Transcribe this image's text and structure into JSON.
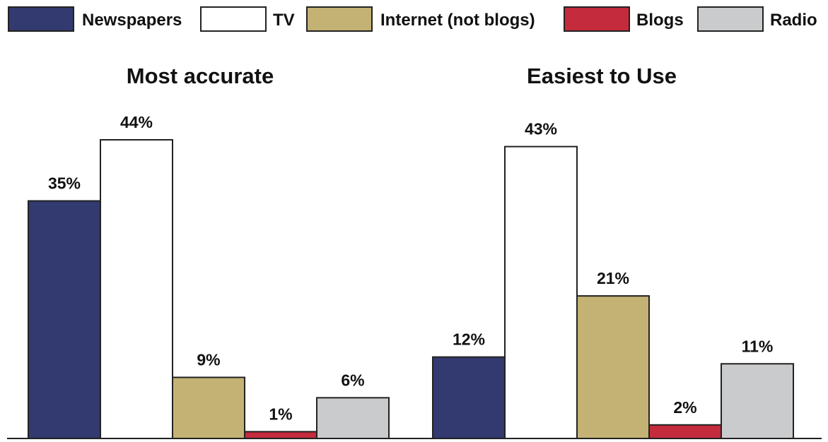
{
  "chart_data": {
    "type": "bar",
    "legend_position": "top",
    "grid": false,
    "series_styles": [
      {
        "name": "Newspapers",
        "fill": "#323a70",
        "stroke": "#222222"
      },
      {
        "name": "TV",
        "fill": "#ffffff",
        "stroke": "#222222"
      },
      {
        "name": "Internet (not blogs)",
        "fill": "#c4b274",
        "stroke": "#222222"
      },
      {
        "name": "Blogs",
        "fill": "#c42b3d",
        "stroke": "#222222"
      },
      {
        "name": "Radio",
        "fill": "#cacbcd",
        "stroke": "#222222"
      }
    ],
    "panels": [
      {
        "title": "Most accurate",
        "values": [
          35,
          44,
          9,
          1,
          6
        ],
        "labels": [
          "35%",
          "44%",
          "9%",
          "1%",
          "6%"
        ]
      },
      {
        "title": "Easiest to Use",
        "values": [
          12,
          43,
          21,
          2,
          11
        ],
        "labels": [
          "12%",
          "43%",
          "21%",
          "2%",
          "11%"
        ]
      }
    ],
    "ylim": [
      0,
      44
    ]
  }
}
